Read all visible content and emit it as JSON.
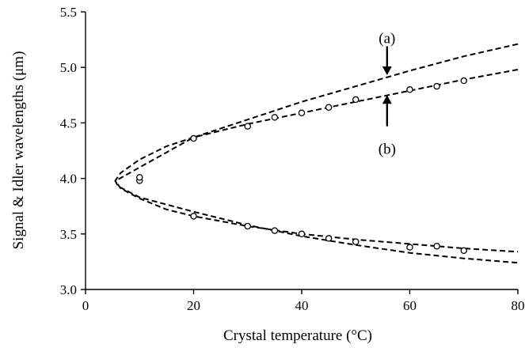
{
  "chart_data": {
    "type": "scatter",
    "xlabel": "Crystal temperature (°C)",
    "ylabel": "Signal & Idler wavelengths (μm)",
    "xlim": [
      0,
      80
    ],
    "ylim": [
      3.0,
      5.5
    ],
    "x_ticks": [
      "0",
      "20",
      "40",
      "60",
      "80"
    ],
    "y_ticks": [
      "3.0",
      "3.5",
      "4.0",
      "4.5",
      "5.0",
      "5.5"
    ],
    "grid": false,
    "legend": "none",
    "series": [
      {
        "style": "dashed-line",
        "color": "#000000",
        "x": [
          80,
          70,
          60,
          50,
          40,
          30,
          20,
          10,
          6,
          5.5,
          6,
          10,
          20,
          30,
          40,
          50,
          60,
          70,
          80
        ],
        "y": [
          5.21,
          5.1,
          4.97,
          4.83,
          4.69,
          4.53,
          4.37,
          4.1,
          3.99,
          3.98,
          3.93,
          3.83,
          3.7,
          3.58,
          3.48,
          3.4,
          3.33,
          3.28,
          3.24
        ]
      },
      {
        "style": "dashed-line",
        "color": "#000000",
        "x": [
          80,
          70,
          60,
          50,
          40,
          30,
          20,
          15,
          10,
          6.5,
          5.5,
          6.5,
          10,
          15,
          20,
          30,
          40,
          50,
          60,
          70,
          80
        ],
        "y": [
          4.98,
          4.89,
          4.79,
          4.69,
          4.59,
          4.49,
          4.37,
          4.29,
          4.17,
          4.05,
          3.98,
          3.91,
          3.82,
          3.72,
          3.66,
          3.57,
          3.5,
          3.45,
          3.41,
          3.37,
          3.34
        ]
      },
      {
        "style": "open-circle-markers",
        "color": "#000000",
        "x": [
          10,
          10,
          20,
          30,
          35,
          40,
          45,
          50,
          60,
          65,
          70,
          20,
          30,
          35,
          40,
          45,
          50,
          60,
          65,
          70
        ],
        "y": [
          3.98,
          4.01,
          4.36,
          4.47,
          4.55,
          4.59,
          4.64,
          4.71,
          4.8,
          4.83,
          4.88,
          3.66,
          3.57,
          3.53,
          3.5,
          3.46,
          3.43,
          3.38,
          3.39,
          3.35
        ]
      }
    ],
    "annotations": [
      {
        "label": "(a)",
        "x": 55.8,
        "y_text": 5.27,
        "arrow_from": 5.19,
        "arrow_to": 4.93
      },
      {
        "label": "(b)",
        "x": 55.8,
        "y_text": 4.27,
        "arrow_from": 4.47,
        "arrow_to": 4.75
      }
    ]
  }
}
